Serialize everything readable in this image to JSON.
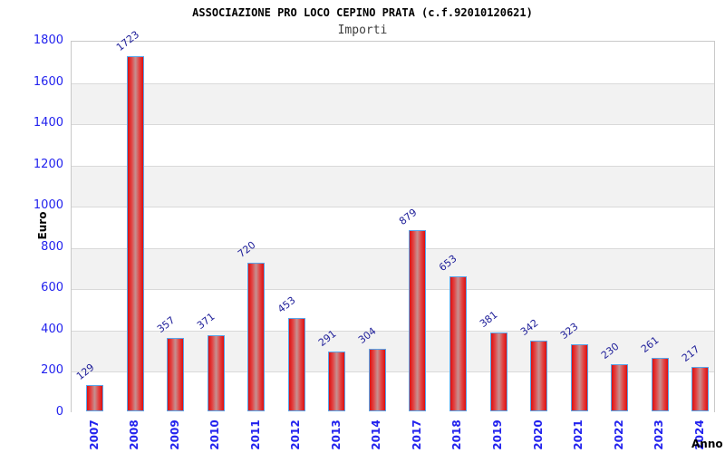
{
  "header": {
    "title": "ASSOCIAZIONE PRO LOCO CEPINO PRATA (c.f.92010120621)",
    "subtitle": "Importi"
  },
  "chart_data": {
    "type": "bar",
    "title": "ASSOCIAZIONE PRO LOCO CEPINO PRATA (c.f.92010120621)",
    "subtitle": "Importi",
    "xlabel": "Anno",
    "ylabel": "Euro",
    "categories": [
      "2007",
      "2008",
      "2009",
      "2010",
      "2011",
      "2012",
      "2013",
      "2014",
      "2017",
      "2018",
      "2019",
      "2020",
      "2021",
      "2022",
      "2023",
      "2024"
    ],
    "values": [
      129,
      1723,
      357,
      371,
      720,
      453,
      291,
      304,
      879,
      653,
      381,
      342,
      323,
      230,
      261,
      217
    ],
    "yticks": [
      0,
      200,
      400,
      600,
      800,
      1000,
      1200,
      1400,
      1600,
      1800
    ],
    "ylim": [
      0,
      1800
    ],
    "legend": null,
    "grid": "horizontal gridlines with alternating white/gray bands",
    "colors": {
      "bar_fill_edge": "#dd0f0f",
      "bar_fill_mid": "#c59191",
      "bar_border": "#58a5ea",
      "tick_label": "#2222ee",
      "value_label": "#20209a",
      "band": "#f2f2f2",
      "gridline": "#d9d9d9",
      "frame": "#c9c9c9",
      "title": "#000000",
      "subtitle": "#3d3d3d",
      "axis_title": "#000000"
    }
  }
}
